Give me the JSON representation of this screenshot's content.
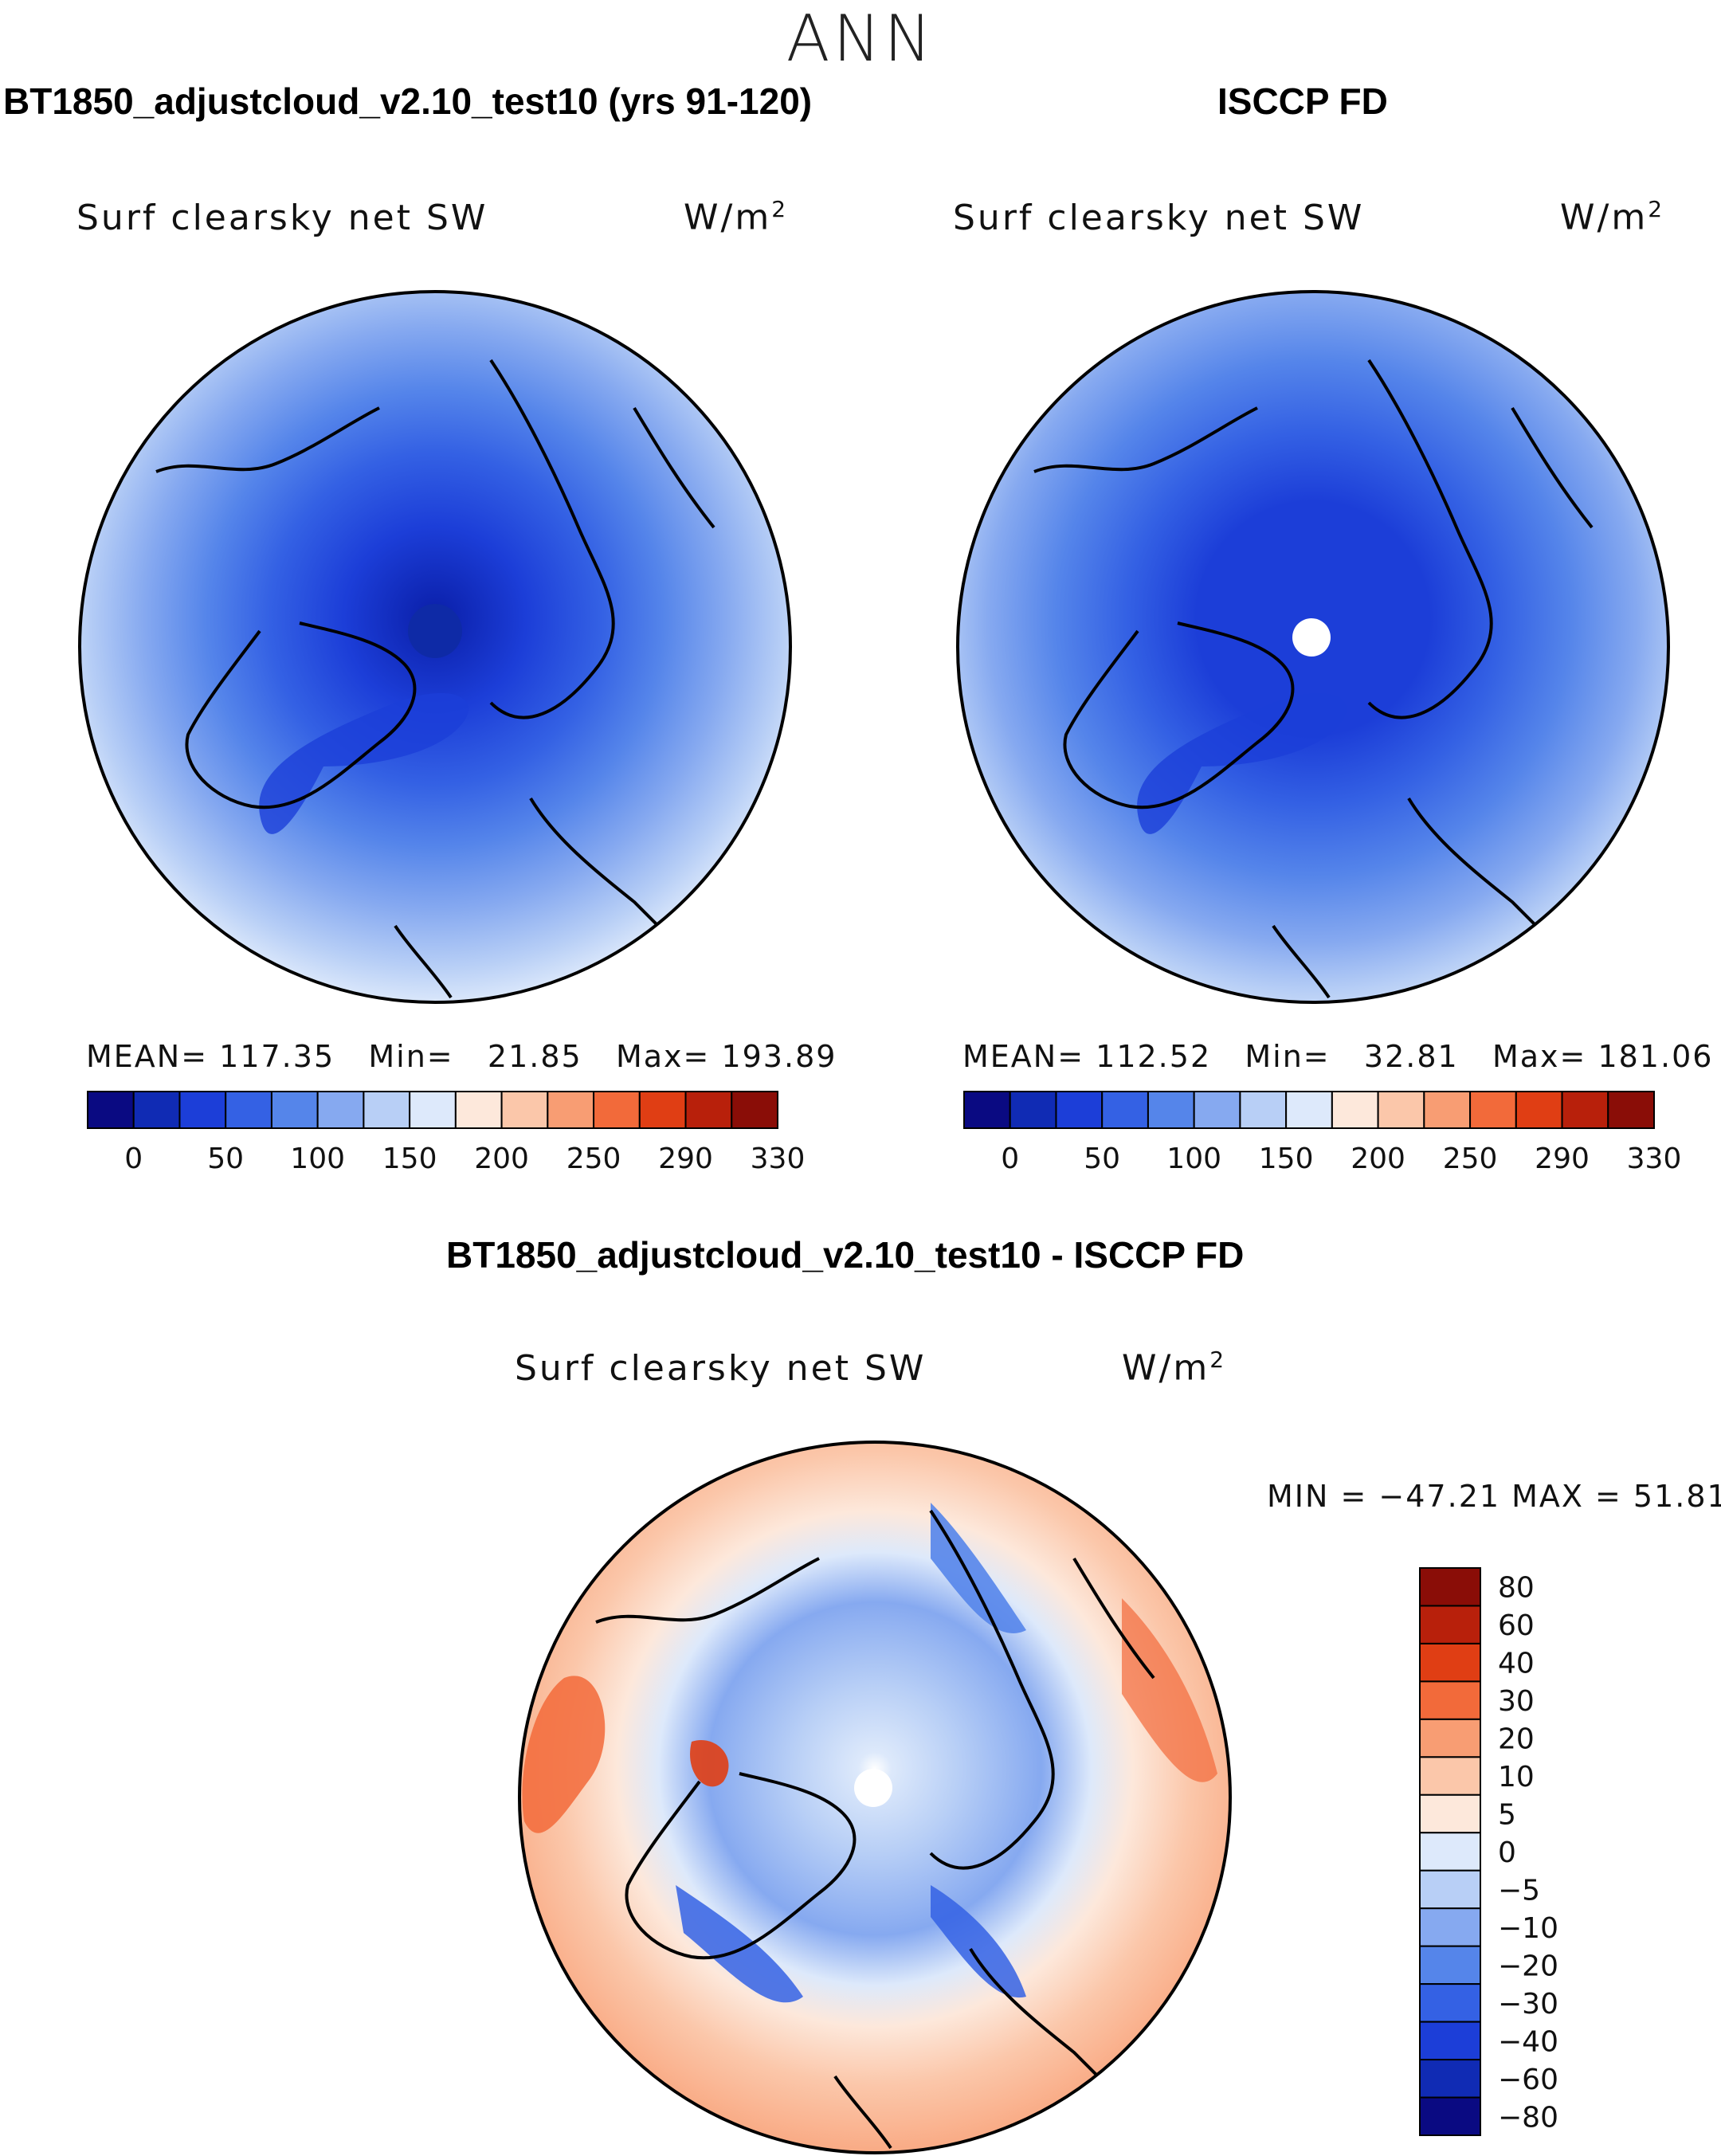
{
  "season": "ANN",
  "units_base": "W/m",
  "units_exp": "2",
  "panels": {
    "model": {
      "title": "BT1850_adjustcloud_v2.10_test10 (yrs 91-120)",
      "subtitle": "Surf clearsky net SW",
      "stats": {
        "mean_label": "MEAN=",
        "mean": "117.35",
        "min_label": "Min=",
        "min": "21.85",
        "max_label": "Max=",
        "max": "193.89"
      }
    },
    "obs": {
      "title": "ISCCP FD",
      "subtitle": "Surf clearsky net SW",
      "stats": {
        "mean_label": "MEAN=",
        "mean": "112.52",
        "min_label": "Min=",
        "min": "32.81",
        "max_label": "Max=",
        "max": "181.06"
      }
    },
    "diff": {
      "title": "BT1850_adjustcloud_v2.10_test10 - ISCCP FD",
      "subtitle": "Surf clearsky net SW",
      "minmax": "MIN = −47.21 MAX =   51.81"
    }
  },
  "chart_data": [
    {
      "type": "heatmap",
      "projection": "north-polar-stereographic",
      "title": "BT1850_adjustcloud_v2.10_test10 (yrs 91-120)",
      "variable": "Surf clearsky net SW",
      "units": "W/m^2",
      "mean": 117.35,
      "min": 21.85,
      "max": 193.89,
      "colorbar_ticks": [
        "0",
        "50",
        "100",
        "150",
        "200",
        "250",
        "290",
        "330"
      ],
      "colorbar_colors": [
        "#0a0a82",
        "#102bb4",
        "#1c3ed8",
        "#3461e4",
        "#5585ea",
        "#86a9f0",
        "#b8cff6",
        "#dde9fb",
        "#fde8db",
        "#fbc7aa",
        "#f89d73",
        "#f26a3a",
        "#e03e14",
        "#b8200b",
        "#8a0d07"
      ]
    },
    {
      "type": "heatmap",
      "projection": "north-polar-stereographic",
      "title": "ISCCP FD",
      "variable": "Surf clearsky net SW",
      "units": "W/m^2",
      "mean": 112.52,
      "min": 32.81,
      "max": 181.06,
      "colorbar_ticks": [
        "0",
        "50",
        "100",
        "150",
        "200",
        "250",
        "290",
        "330"
      ],
      "colorbar_colors": [
        "#0a0a82",
        "#102bb4",
        "#1c3ed8",
        "#3461e4",
        "#5585ea",
        "#86a9f0",
        "#b8cff6",
        "#dde9fb",
        "#fde8db",
        "#fbc7aa",
        "#f89d73",
        "#f26a3a",
        "#e03e14",
        "#b8200b",
        "#8a0d07"
      ]
    },
    {
      "type": "heatmap",
      "projection": "north-polar-stereographic",
      "title": "BT1850_adjustcloud_v2.10_test10 - ISCCP FD",
      "variable": "Surf clearsky net SW",
      "units": "W/m^2",
      "min": -47.21,
      "max": 51.81,
      "colorbar_ticks": [
        "80",
        "60",
        "40",
        "30",
        "20",
        "10",
        "5",
        "0",
        "−5",
        "−10",
        "−20",
        "−30",
        "−40",
        "−60",
        "−80"
      ],
      "colorbar_colors": [
        "#8a0d07",
        "#b8200b",
        "#e03e14",
        "#f26a3a",
        "#f89d73",
        "#fbc7aa",
        "#fde8db",
        "#dde9fb",
        "#b8cff6",
        "#86a9f0",
        "#5585ea",
        "#3461e4",
        "#1c3ed8",
        "#102bb4",
        "#0a0a82"
      ]
    }
  ]
}
